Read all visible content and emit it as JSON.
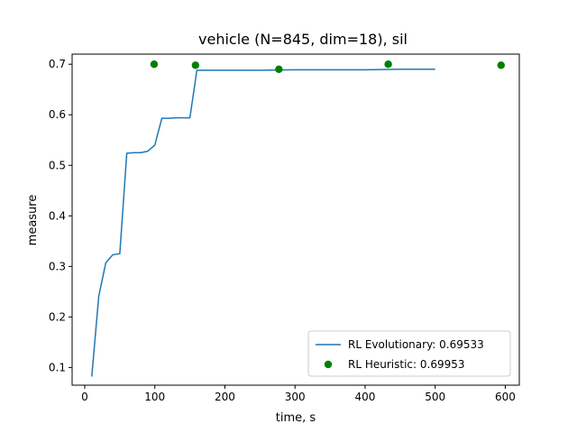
{
  "chart_data": {
    "type": "line",
    "title": "vehicle (N=845, dim=18), sil",
    "xlabel": "time, s",
    "ylabel": "measure",
    "xlim": [
      -18,
      620
    ],
    "ylim": [
      0.065,
      0.72
    ],
    "x_ticks": [
      0,
      100,
      200,
      300,
      400,
      500,
      600
    ],
    "x_tick_labels": [
      "0",
      "100",
      "200",
      "300",
      "400",
      "500",
      "600"
    ],
    "y_ticks": [
      0.1,
      0.2,
      0.3,
      0.4,
      0.5,
      0.6,
      0.7
    ],
    "y_tick_labels": [
      "0.1",
      "0.2",
      "0.3",
      "0.4",
      "0.5",
      "0.6",
      "0.7"
    ],
    "grid": false,
    "legend_position": "lower-right",
    "series": [
      {
        "name": "RL Evolutionary: 0.69533",
        "kind": "line",
        "color": "#1f77b4",
        "x": [
          10,
          20,
          30,
          40,
          50,
          60,
          70,
          80,
          90,
          100,
          110,
          120,
          130,
          140,
          150,
          160,
          170,
          180,
          200,
          250,
          300,
          350,
          400,
          450,
          500
        ],
        "y": [
          0.082,
          0.241,
          0.307,
          0.323,
          0.325,
          0.524,
          0.525,
          0.525,
          0.528,
          0.54,
          0.593,
          0.593,
          0.594,
          0.594,
          0.594,
          0.688,
          0.688,
          0.688,
          0.688,
          0.688,
          0.689,
          0.689,
          0.689,
          0.69,
          0.69
        ]
      },
      {
        "name": "RL Heuristic: 0.69953",
        "kind": "scatter",
        "color": "#008000",
        "x": [
          99,
          158,
          277,
          433,
          594
        ],
        "y": [
          0.7,
          0.698,
          0.69,
          0.7,
          0.698
        ]
      }
    ]
  }
}
